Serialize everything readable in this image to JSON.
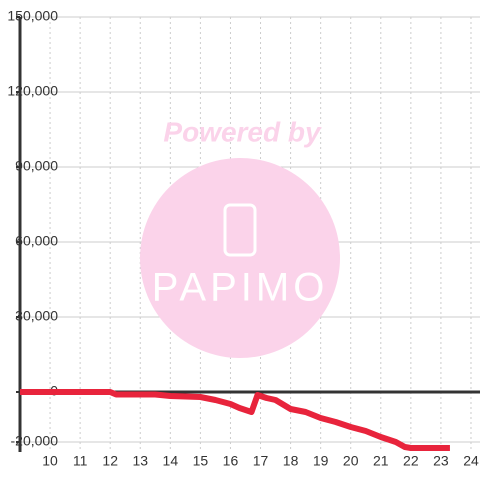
{
  "chart_data": {
    "type": "line",
    "watermark": [
      "Powered by",
      "PAPIMO"
    ],
    "x": [
      9,
      12,
      12.2,
      13.5,
      14,
      15,
      15.5,
      16,
      16.3,
      16.7,
      16.9,
      17.2,
      17.5,
      18,
      18.5,
      19,
      19.5,
      20,
      20.5,
      21,
      21.5,
      21.8,
      22,
      23.3
    ],
    "series": [
      {
        "color": "#e8243c",
        "values": [
          0,
          0,
          -1000,
          -1000,
          -1600,
          -2000,
          -3200,
          -4800,
          -6400,
          -8000,
          -1200,
          -2400,
          -3200,
          -6800,
          -8000,
          -10400,
          -12000,
          -14000,
          -15600,
          -18000,
          -20000,
          -22000,
          -22400,
          -22400
        ]
      }
    ],
    "xlim": [
      9,
      24.3
    ],
    "xticks": [
      10,
      11,
      12,
      13,
      14,
      15,
      16,
      17,
      18,
      19,
      20,
      21,
      22,
      23,
      24
    ],
    "ylim": [
      -24000,
      150000
    ],
    "yticks": [
      {
        "value": -20000,
        "label": "-20,000"
      },
      0,
      {
        "value": 30000,
        "label": "30,000"
      },
      {
        "value": 60000,
        "label": "60,000"
      },
      {
        "value": 90000,
        "label": "90,000"
      },
      {
        "value": 120000,
        "label": "120,000"
      },
      {
        "value": 150000,
        "label": "150,000"
      }
    ],
    "grid": true
  }
}
